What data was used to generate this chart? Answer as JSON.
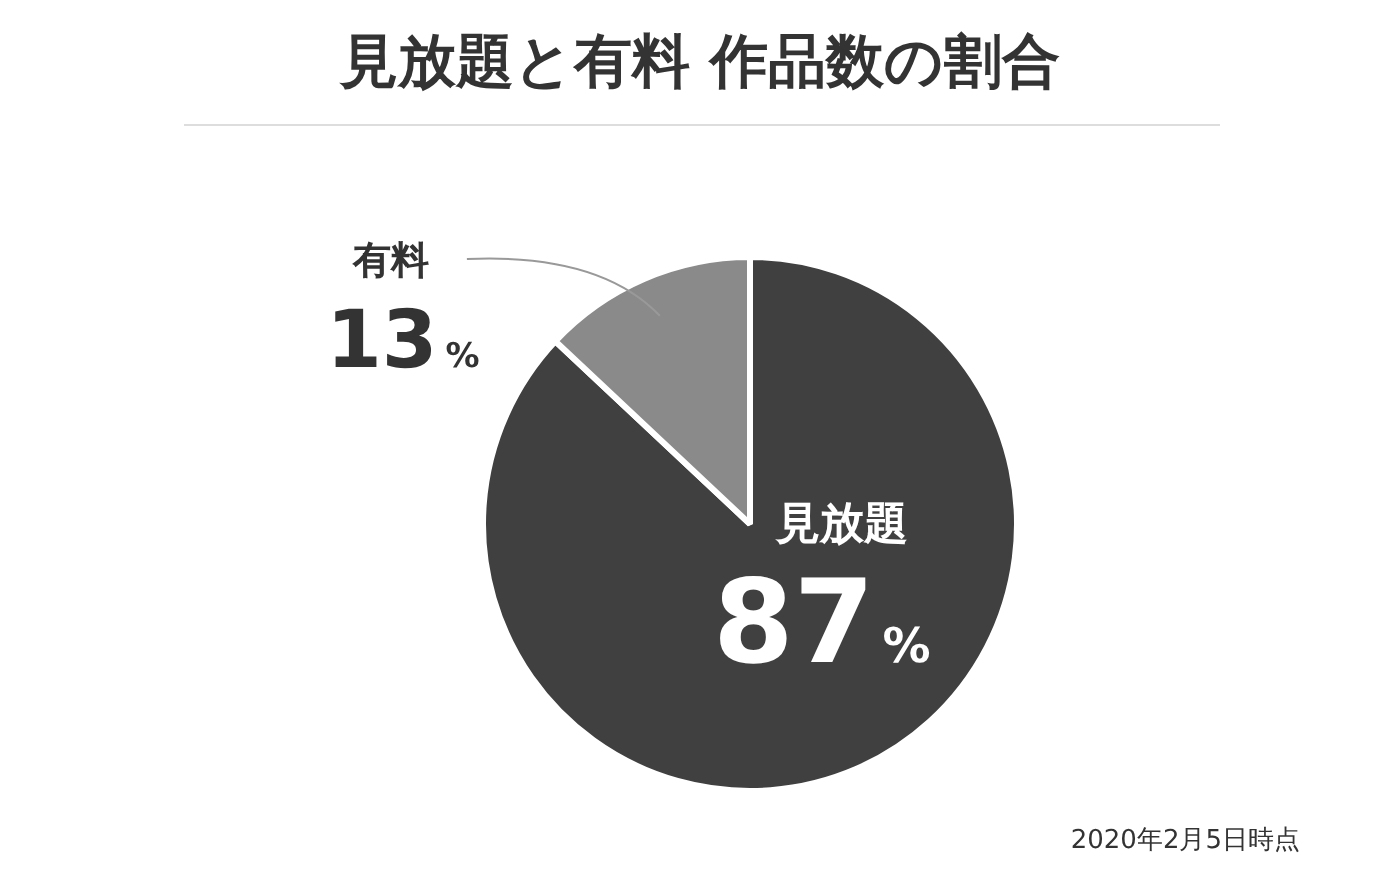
{
  "chart_data": {
    "type": "pie",
    "title": "見放題と有料 作品数の割合",
    "categories": [
      "見放題",
      "有料"
    ],
    "values": [
      87,
      13
    ],
    "colors": [
      "#404040",
      "#8a8a8a"
    ],
    "value_labels": [
      "87%",
      "13%"
    ],
    "legend": false,
    "annotations": [
      "2020年2月5日時点"
    ]
  }
}
